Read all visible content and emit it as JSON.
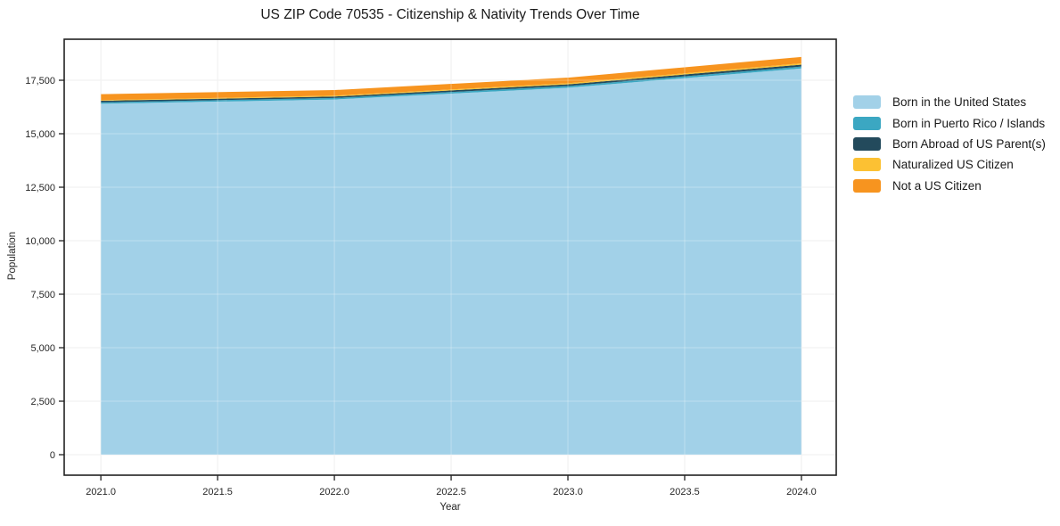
{
  "title": "US ZIP Code 70535 - Citizenship & Nativity Trends Over Time",
  "chart_data": {
    "type": "area",
    "stacked": true,
    "title": "US ZIP Code 70535 - Citizenship & Nativity Trends Over Time",
    "xlabel": "Year",
    "ylabel": "Population",
    "x": [
      2021,
      2022,
      2023,
      2024
    ],
    "series": [
      {
        "name": "Born in the United States",
        "color": "#a2d1e8",
        "values": [
          16400,
          16600,
          17150,
          18050
        ]
      },
      {
        "name": "Born in Puerto Rico / Islands",
        "color": "#3ba7c2",
        "values": [
          70,
          70,
          80,
          90
        ]
      },
      {
        "name": "Born Abroad of US Parent(s)",
        "color": "#234a5c",
        "values": [
          70,
          70,
          80,
          90
        ]
      },
      {
        "name": "Naturalized US Citizen",
        "color": "#fcc133",
        "values": [
          30,
          40,
          50,
          60
        ]
      },
      {
        "name": "Not a US Citizen",
        "color": "#f7941f",
        "values": [
          280,
          260,
          260,
          300
        ]
      }
    ],
    "x_ticks": [
      "2021.0",
      "2021.5",
      "2022.0",
      "2022.5",
      "2023.0",
      "2023.5",
      "2024.0"
    ],
    "y_ticks": [
      "0",
      "2,500",
      "5,000",
      "7,500",
      "10,000",
      "12,500",
      "15,000",
      "17,500"
    ],
    "x_range": [
      2020.843,
      2024.149
    ],
    "y_range": [
      -958,
      19417
    ],
    "grid": true,
    "legend_position": "right-outside",
    "colors": {
      "grid": "#e8e8e8",
      "spine": "#222222",
      "tick_text": "#262626"
    }
  }
}
